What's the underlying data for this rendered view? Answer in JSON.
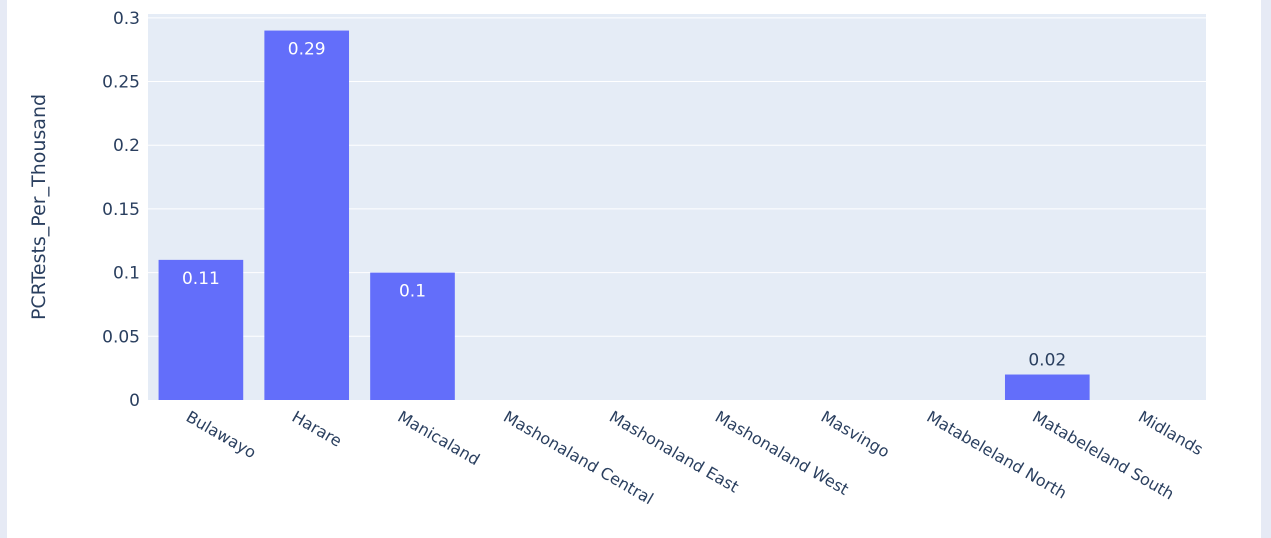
{
  "colors": {
    "plot_background": "#e5ecf6",
    "bar": "#636efa",
    "grid": "#ffffff",
    "text": "#2a3f5f",
    "page_border": "#e6eaf5"
  },
  "chart_data": {
    "type": "bar",
    "categories": [
      "Bulawayo",
      "Harare",
      "Manicaland",
      "Mashonaland Central",
      "Mashonaland East",
      "Mashonaland West",
      "Masvingo",
      "Matabeleland North",
      "Matabeleland South",
      "Midlands"
    ],
    "values": [
      0.11,
      0.29,
      0.1,
      0,
      0,
      0,
      0,
      0,
      0.02,
      0
    ],
    "data_labels": [
      "0.11",
      "0.29",
      "0.1",
      "",
      "",
      "",
      "",
      "",
      "0.02",
      ""
    ],
    "yticks": [
      "0",
      "0.05",
      "0.1",
      "0.15",
      "0.2",
      "0.25",
      "0.3"
    ],
    "ytick_values": [
      0,
      0.05,
      0.1,
      0.15,
      0.2,
      0.25,
      0.3
    ],
    "ylabel": "PCRTests_Per_Thousand",
    "xlabel": "",
    "ylim": [
      0,
      0.303
    ],
    "grid": true,
    "xtick_angle": 30
  }
}
